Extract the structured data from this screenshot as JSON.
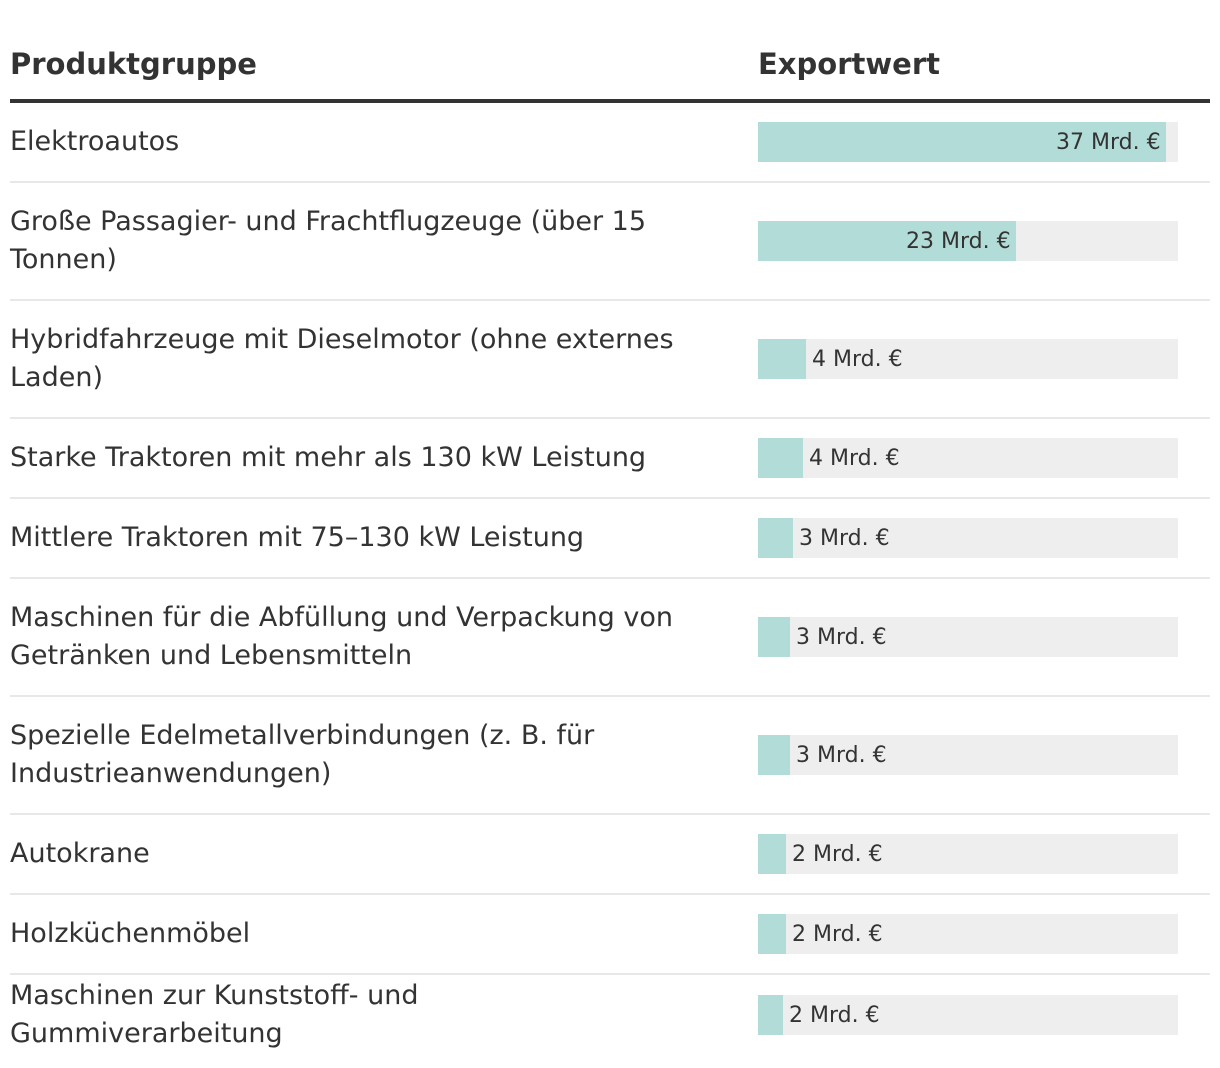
{
  "header": {
    "label_column": "Produktgruppe",
    "value_column": "Exportwert"
  },
  "colors": {
    "bar_fill": "#b2dcd8",
    "bar_track": "#eeeeee",
    "text": "#333333"
  },
  "chart_data": {
    "type": "bar",
    "orientation": "horizontal",
    "unit": "Mrd. €",
    "xlim": [
      0,
      38
    ],
    "categories": [
      "Elektroautos",
      "Große Passagier- und Frachtflugzeuge (über 15 Tonnen)",
      "Hybridfahrzeuge mit Dieselmotor (ohne externes Laden)",
      "Starke Traktoren mit mehr als 130 kW Leistung",
      "Mittlere Traktoren mit 75–130 kW Leistung",
      "Maschinen für die Abfüllung und Verpackung von Getränken und Lebensmitteln",
      "Spezielle Edelmetallverbindungen (z. B. für Industrieanwendungen)",
      "Autokrane",
      "Holzküchenmöbel",
      "Maschinen zur Kunststoff- und Gummiverarbeitung"
    ],
    "values": [
      36.9,
      23.3,
      4.3,
      4.1,
      3.2,
      2.9,
      2.9,
      2.5,
      2.5,
      2.3
    ],
    "value_labels": [
      "37 Mrd. €",
      "23 Mrd. €",
      "4 Mrd. €",
      "4 Mrd. €",
      "3 Mrd. €",
      "3 Mrd. €",
      "3 Mrd. €",
      "2 Mrd. €",
      "2 Mrd. €",
      "2 Mrd. €"
    ]
  }
}
